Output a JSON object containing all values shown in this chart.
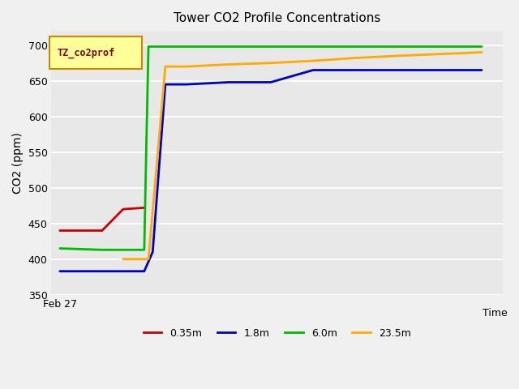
{
  "title": "Tower CO2 Profile Concentrations",
  "xlabel": "Time",
  "ylabel": "CO2 (ppm)",
  "ylim": [
    350,
    720
  ],
  "yticks": [
    350,
    400,
    450,
    500,
    550,
    600,
    650,
    700
  ],
  "x_label_text": "Feb 27",
  "fig_facecolor": "#f0f0f0",
  "axes_facecolor": "#e8e8e8",
  "legend_label": "TZ_co2prof",
  "legend_box_facecolor": "#ffff99",
  "legend_box_edgecolor": "#cc8800",
  "series": [
    {
      "label": "0.35m",
      "color": "#cc0000",
      "x": [
        0,
        1.0,
        1.5,
        2.0
      ],
      "y": [
        440,
        440,
        470,
        472
      ]
    },
    {
      "label": "1.8m",
      "color": "#0000cc",
      "x": [
        0,
        1.0,
        1.5,
        2.0,
        2.2,
        2.5,
        3.0,
        4.0,
        5.0,
        6.0,
        10.0
      ],
      "y": [
        383,
        383,
        383,
        383,
        410,
        645,
        645,
        648,
        648,
        665,
        665
      ]
    },
    {
      "label": "6.0m",
      "color": "#00bb00",
      "x": [
        0,
        1.0,
        1.5,
        2.0,
        2.05,
        2.1,
        10.0
      ],
      "y": [
        415,
        413,
        413,
        413,
        560,
        698,
        698
      ]
    },
    {
      "label": "23.5m",
      "color": "#ffaa00",
      "x": [
        1.5,
        2.0,
        2.1,
        2.5,
        3.0,
        4.0,
        5.0,
        6.0,
        7.0,
        8.0,
        10.0
      ],
      "y": [
        400,
        400,
        400,
        670,
        670,
        673,
        675,
        678,
        682,
        685,
        690
      ]
    }
  ],
  "line_width": 2.0
}
